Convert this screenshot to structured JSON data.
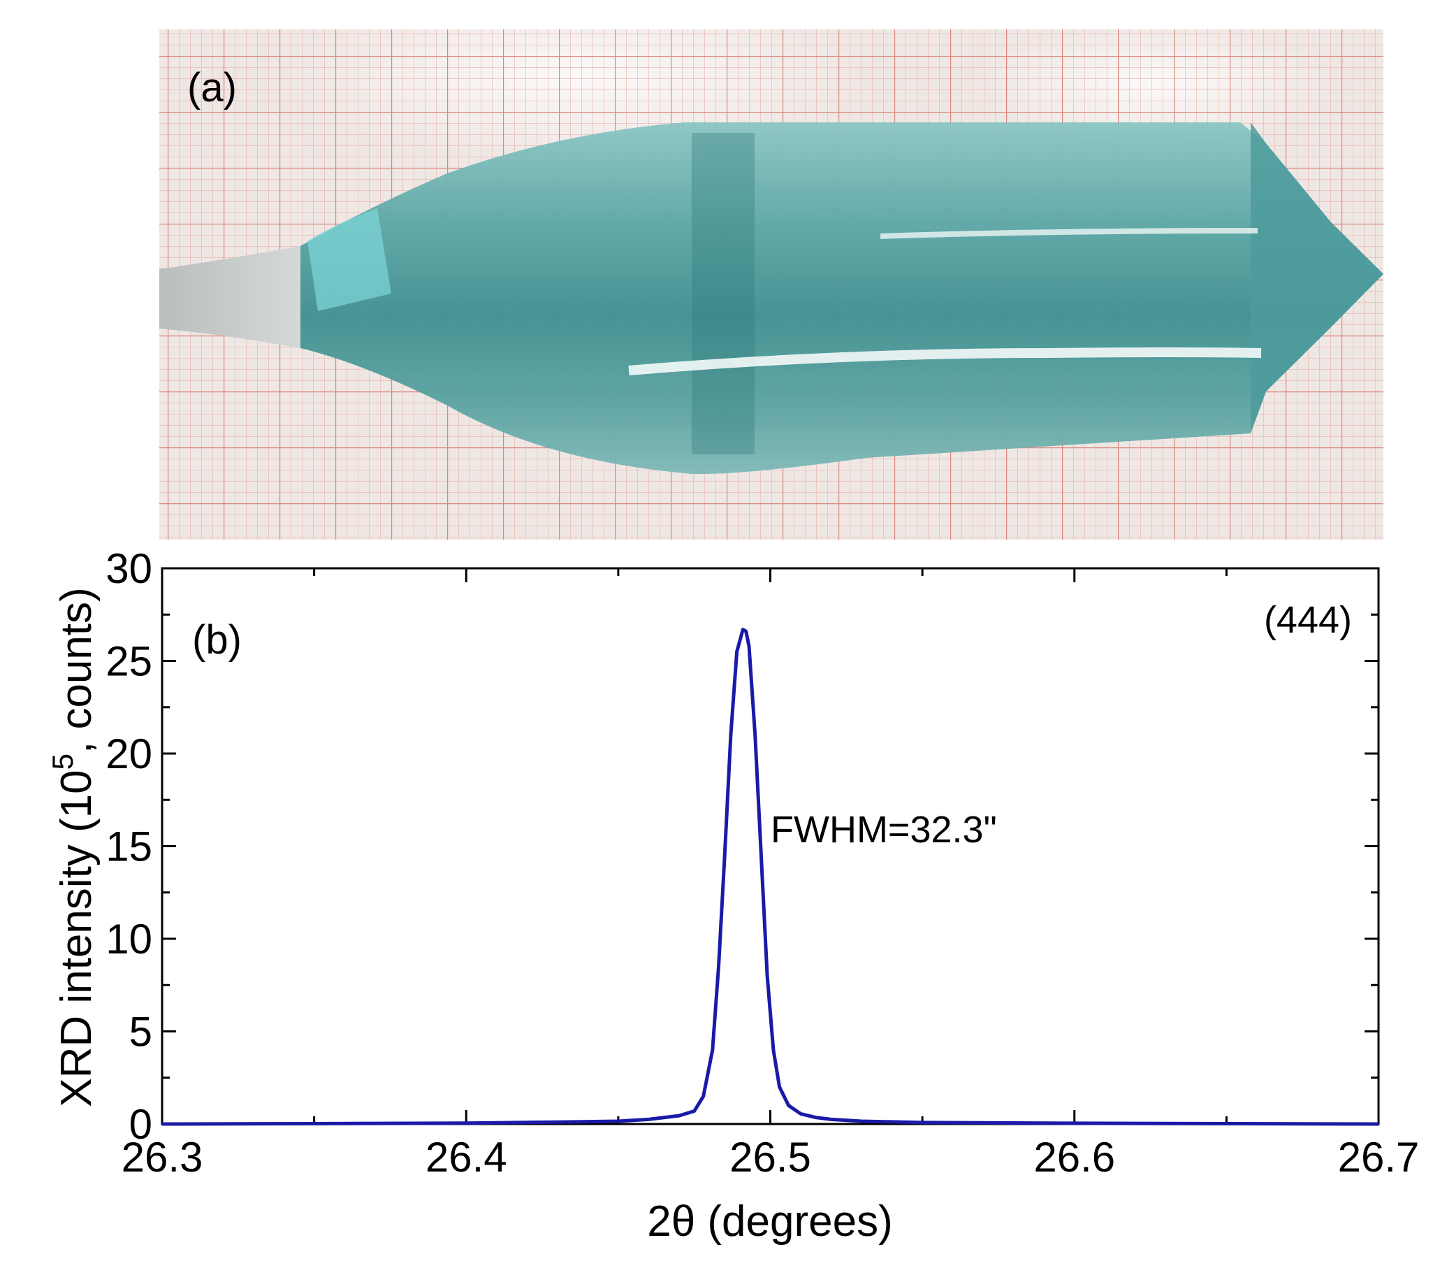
{
  "panel_a": {
    "label": "(a)"
  },
  "chart_data": {
    "type": "line",
    "panel_label": "(b)",
    "reflection_label": "(444)",
    "annotation": "FWHM=32.3\"",
    "xlabel": "2θ (degrees)",
    "ylabel_main": "XRD intensity (10",
    "ylabel_sup": "5",
    "ylabel_tail": ", counts)",
    "xlim": [
      26.3,
      26.7
    ],
    "ylim": [
      0,
      30
    ],
    "xticks": [
      "26.3",
      "26.4",
      "26.5",
      "26.6",
      "26.7"
    ],
    "yticks": [
      "0",
      "5",
      "10",
      "15",
      "20",
      "25",
      "30"
    ],
    "grid": false,
    "series": [
      {
        "color": "#1a1aa8",
        "x": [
          26.3,
          26.35,
          26.4,
          26.43,
          26.45,
          26.46,
          26.47,
          26.475,
          26.478,
          26.481,
          26.483,
          26.485,
          26.487,
          26.489,
          26.491,
          26.492,
          26.493,
          26.495,
          26.497,
          26.499,
          26.501,
          26.503,
          26.506,
          26.51,
          26.515,
          26.52,
          26.53,
          26.55,
          26.6,
          26.65,
          26.7
        ],
        "y": [
          0.0,
          0.02,
          0.05,
          0.1,
          0.15,
          0.25,
          0.45,
          0.7,
          1.5,
          4.0,
          8.5,
          14.5,
          21.0,
          25.5,
          26.7,
          26.6,
          25.8,
          21.0,
          14.5,
          8.0,
          4.0,
          2.0,
          1.0,
          0.55,
          0.35,
          0.25,
          0.15,
          0.08,
          0.04,
          0.02,
          0.0
        ]
      }
    ]
  }
}
